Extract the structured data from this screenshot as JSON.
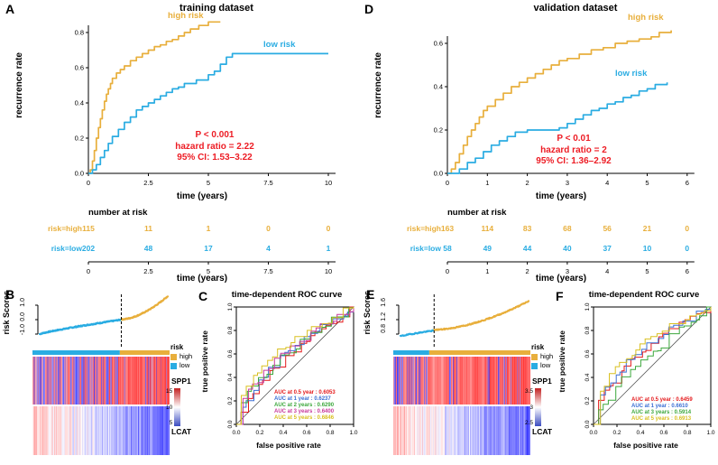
{
  "chart_data": [
    {
      "panel": "A",
      "type": "line",
      "subtype": "kaplan-meier",
      "title": "training dataset",
      "xlabel": "time (years)",
      "ylabel": "recurrence rate",
      "xticks": [
        0,
        2.5,
        5,
        7.5,
        10
      ],
      "yticks": [
        0,
        0.2,
        0.4,
        0.6,
        0.8
      ],
      "xlim": [
        0,
        10.6
      ],
      "ylim": [
        0,
        0.88
      ],
      "stats_color": "#ED1C24",
      "annotations": [
        "P < 0.001",
        "hazard ratio = 2.22",
        "95% CI: 1.53–3.22"
      ],
      "series": [
        {
          "name": "high risk",
          "color": "#E8AF3C",
          "points": [
            [
              0,
              0
            ],
            [
              0.08,
              0.02
            ],
            [
              0.17,
              0.07
            ],
            [
              0.25,
              0.13
            ],
            [
              0.33,
              0.2
            ],
            [
              0.42,
              0.26
            ],
            [
              0.5,
              0.31
            ],
            [
              0.58,
              0.36
            ],
            [
              0.67,
              0.41
            ],
            [
              0.75,
              0.45
            ],
            [
              0.83,
              0.48
            ],
            [
              0.92,
              0.51
            ],
            [
              1,
              0.54
            ],
            [
              1.17,
              0.57
            ],
            [
              1.33,
              0.59
            ],
            [
              1.5,
              0.61
            ],
            [
              1.75,
              0.64
            ],
            [
              2,
              0.66
            ],
            [
              2.25,
              0.68
            ],
            [
              2.5,
              0.7
            ],
            [
              2.75,
              0.72
            ],
            [
              3,
              0.73
            ],
            [
              3.25,
              0.75
            ],
            [
              3.5,
              0.76
            ],
            [
              3.75,
              0.78
            ],
            [
              4,
              0.8
            ],
            [
              4.25,
              0.82
            ],
            [
              4.6,
              0.84
            ],
            [
              5,
              0.86
            ],
            [
              5.5,
              0.86
            ]
          ]
        },
        {
          "name": "low risk",
          "color": "#2AACE2",
          "points": [
            [
              0,
              0
            ],
            [
              0.17,
              0.02
            ],
            [
              0.33,
              0.05
            ],
            [
              0.5,
              0.09
            ],
            [
              0.67,
              0.13
            ],
            [
              0.83,
              0.17
            ],
            [
              1,
              0.21
            ],
            [
              1.25,
              0.25
            ],
            [
              1.5,
              0.29
            ],
            [
              1.75,
              0.32
            ],
            [
              2,
              0.36
            ],
            [
              2.25,
              0.38
            ],
            [
              2.5,
              0.4
            ],
            [
              2.75,
              0.42
            ],
            [
              3,
              0.44
            ],
            [
              3.25,
              0.46
            ],
            [
              3.5,
              0.48
            ],
            [
              3.75,
              0.49
            ],
            [
              4,
              0.51
            ],
            [
              4.5,
              0.53
            ],
            [
              5,
              0.56
            ],
            [
              5.25,
              0.58
            ],
            [
              5.5,
              0.62
            ],
            [
              5.75,
              0.66
            ],
            [
              6,
              0.68
            ],
            [
              10,
              0.68
            ]
          ]
        }
      ],
      "number_at_risk": {
        "label": "number at risk",
        "times": [
          0,
          2.5,
          5,
          7.5,
          10
        ],
        "rows": [
          {
            "name": "risk=high",
            "color": "#E8AF3C",
            "values": [
              115,
              11,
              1,
              0,
              0
            ]
          },
          {
            "name": "risk=low",
            "color": "#2AACE2",
            "values": [
              202,
              48,
              17,
              4,
              1
            ]
          }
        ]
      }
    },
    {
      "panel": "D",
      "type": "line",
      "subtype": "kaplan-meier",
      "title": "validation dataset",
      "xlabel": "time (years)",
      "ylabel": "recurrence rate",
      "xticks": [
        0,
        1,
        2,
        3,
        4,
        5,
        6
      ],
      "yticks": [
        0,
        0.2,
        0.4,
        0.6
      ],
      "xlim": [
        0,
        6.2
      ],
      "ylim": [
        0,
        0.7
      ],
      "stats_color": "#ED1C24",
      "annotations": [
        "P < 0.01",
        "hazard ratio = 2",
        "95% CI: 1.36–2.92"
      ],
      "series": [
        {
          "name": "high risk",
          "color": "#E8AF3C",
          "points": [
            [
              0,
              0
            ],
            [
              0.1,
              0.02
            ],
            [
              0.2,
              0.05
            ],
            [
              0.3,
              0.09
            ],
            [
              0.4,
              0.13
            ],
            [
              0.5,
              0.17
            ],
            [
              0.6,
              0.2
            ],
            [
              0.7,
              0.23
            ],
            [
              0.8,
              0.26
            ],
            [
              0.9,
              0.29
            ],
            [
              1,
              0.31
            ],
            [
              1.2,
              0.34
            ],
            [
              1.4,
              0.37
            ],
            [
              1.6,
              0.4
            ],
            [
              1.8,
              0.42
            ],
            [
              2,
              0.44
            ],
            [
              2.2,
              0.46
            ],
            [
              2.4,
              0.48
            ],
            [
              2.6,
              0.5
            ],
            [
              2.8,
              0.52
            ],
            [
              3,
              0.53
            ],
            [
              3.3,
              0.55
            ],
            [
              3.6,
              0.57
            ],
            [
              3.9,
              0.58
            ],
            [
              4.2,
              0.6
            ],
            [
              4.5,
              0.61
            ],
            [
              4.8,
              0.62
            ],
            [
              5.1,
              0.63
            ],
            [
              5.3,
              0.65
            ],
            [
              5.6,
              0.66
            ]
          ]
        },
        {
          "name": "low risk",
          "color": "#2AACE2",
          "points": [
            [
              0,
              0
            ],
            [
              0.3,
              0.02
            ],
            [
              0.5,
              0.05
            ],
            [
              0.7,
              0.07
            ],
            [
              0.9,
              0.1
            ],
            [
              1.1,
              0.13
            ],
            [
              1.3,
              0.15
            ],
            [
              1.5,
              0.17
            ],
            [
              1.7,
              0.19
            ],
            [
              2,
              0.2
            ],
            [
              2.4,
              0.2
            ],
            [
              2.8,
              0.21
            ],
            [
              3,
              0.23
            ],
            [
              3.2,
              0.25
            ],
            [
              3.4,
              0.27
            ],
            [
              3.6,
              0.29
            ],
            [
              3.8,
              0.3
            ],
            [
              4,
              0.32
            ],
            [
              4.2,
              0.33
            ],
            [
              4.4,
              0.35
            ],
            [
              4.6,
              0.36
            ],
            [
              4.8,
              0.38
            ],
            [
              5,
              0.39
            ],
            [
              5.2,
              0.41
            ],
            [
              5.5,
              0.42
            ]
          ]
        }
      ],
      "number_at_risk": {
        "label": "number at risk",
        "times": [
          0,
          1,
          2,
          3,
          4,
          5,
          6
        ],
        "rows": [
          {
            "name": "risk=high",
            "color": "#E8AF3C",
            "values": [
              163,
              114,
              83,
              68,
              56,
              21,
              0
            ]
          },
          {
            "name": "risk=low",
            "color": "#2AACE2",
            "values": [
              58,
              49,
              44,
              40,
              37,
              10,
              0
            ]
          }
        ]
      }
    },
    {
      "panel": "B",
      "type": "scatter",
      "subtype": "risk-score-distribution",
      "ylabel": "risk Scores",
      "axis_tick_labels": [
        "1.0",
        "0.0",
        "-1.0"
      ],
      "axis_tick_values": [
        1,
        0,
        -1
      ],
      "groups": {
        "low": {
          "n": 202,
          "color": "#2AACE2",
          "range": [
            -1.0,
            0.0
          ]
        },
        "high": {
          "n": 115,
          "color": "#E8AF3C",
          "range": [
            0.02,
            1.65
          ]
        }
      },
      "legend": {
        "title": "risk",
        "items": [
          {
            "label": "high",
            "color": "#E8AF3C"
          },
          {
            "label": "low",
            "color": "#2AACE2"
          }
        ]
      },
      "heatmap": {
        "genes": [
          "SPP1",
          "LCAT"
        ],
        "colorbar_labels": [
          "15",
          "10",
          "5"
        ]
      },
      "seed": 7
    },
    {
      "panel": "C",
      "type": "line",
      "subtype": "roc",
      "title": "time-dependent ROC curve",
      "xlabel": "false positive rate",
      "ylabel": "true positive rate",
      "xticks": [
        0,
        0.2,
        0.4,
        0.6,
        0.8,
        1.0
      ],
      "yticks": [
        0,
        0.2,
        0.4,
        0.6,
        0.8,
        1.0
      ],
      "aucs": [
        {
          "label": "AUC at 0.5 year",
          "value": "0.6053",
          "color": "#E41A1C"
        },
        {
          "label": "AUC at 1 year",
          "value": "0.6237",
          "color": "#3B6FD4"
        },
        {
          "label": "AUC at 2 years",
          "value": "0.6290",
          "color": "#3DA83D"
        },
        {
          "label": "AUC at 3 years",
          "value": "0.6400",
          "color": "#C8399B"
        },
        {
          "label": "AUC at 5 years",
          "value": "0.6846",
          "color": "#D9C021"
        }
      ],
      "seed": 3
    },
    {
      "panel": "E",
      "type": "scatter",
      "subtype": "risk-score-distribution",
      "ylabel": "risk Scores",
      "axis_tick_labels": [
        "1.6",
        "1.2",
        "0.8"
      ],
      "axis_tick_values": [
        1.6,
        1.2,
        0.8
      ],
      "groups": {
        "low": {
          "n": 58,
          "color": "#2AACE2",
          "range": [
            0.74,
            0.9
          ]
        },
        "high": {
          "n": 163,
          "color": "#E8AF3C",
          "range": [
            0.92,
            1.72
          ]
        }
      },
      "legend": {
        "title": "risk",
        "items": [
          {
            "label": "high",
            "color": "#E8AF3C"
          },
          {
            "label": "low",
            "color": "#2AACE2"
          }
        ]
      },
      "heatmap": {
        "genes": [
          "SPP1",
          "LCAT"
        ],
        "colorbar_labels": [
          "3.5",
          "3",
          "2.5"
        ]
      },
      "seed": 19
    },
    {
      "panel": "F",
      "type": "line",
      "subtype": "roc",
      "title": "time-dependent ROC curve",
      "xlabel": "false positive rate",
      "ylabel": "true positive rate",
      "xticks": [
        0,
        0.2,
        0.4,
        0.6,
        0.8,
        1.0
      ],
      "yticks": [
        0,
        0.2,
        0.4,
        0.6,
        0.8,
        1.0
      ],
      "aucs": [
        {
          "label": "AUC at 0.5 year",
          "value": "0.6459",
          "color": "#E41A1C"
        },
        {
          "label": "AUC at 1 year",
          "value": "0.6610",
          "color": "#3B6FD4"
        },
        {
          "label": "AUC at 3 years",
          "value": "0.5914",
          "color": "#3DA83D"
        },
        {
          "label": "AUC at 5 years",
          "value": "0.6913",
          "color": "#D9C021"
        }
      ],
      "seed": 5
    }
  ]
}
